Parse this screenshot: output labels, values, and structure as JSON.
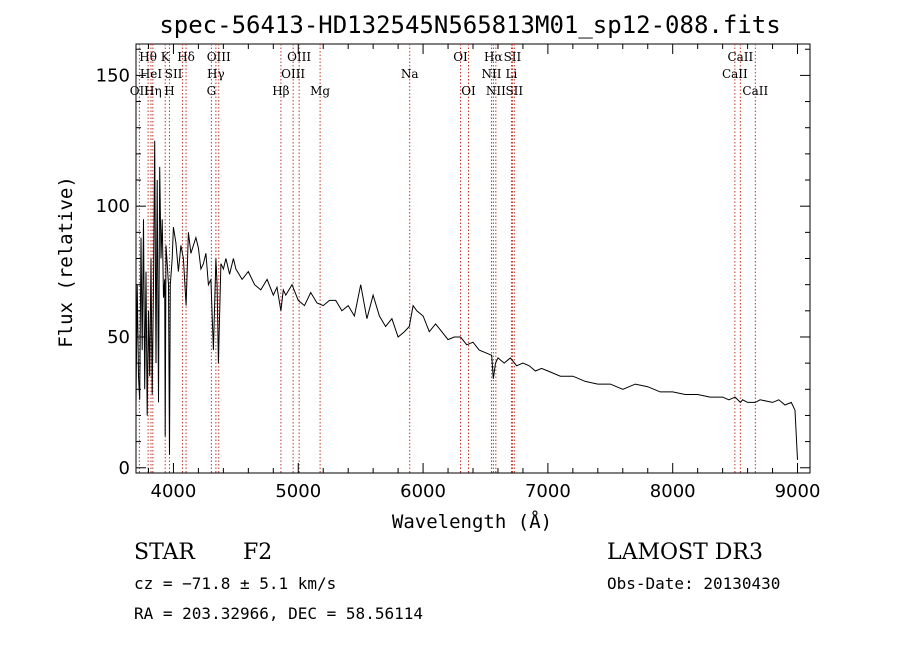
{
  "colors": {
    "line_marker": "#c0392b",
    "spectrum": "#000000"
  },
  "chart_data": {
    "type": "line",
    "title": "spec-56413-HD132545N565813M01_sp12-088.fits",
    "xlabel": "Wavelength (Å)",
    "ylabel": "Flux (relative)",
    "xlim": [
      3700,
      9100
    ],
    "ylim": [
      -2,
      162
    ],
    "xticks": [
      4000,
      5000,
      6000,
      7000,
      8000,
      9000
    ],
    "yticks": [
      0,
      50,
      100,
      150
    ],
    "spectrum": {
      "x": [
        3700,
        3710,
        3720,
        3730,
        3740,
        3750,
        3760,
        3770,
        3780,
        3790,
        3800,
        3810,
        3820,
        3830,
        3840,
        3850,
        3860,
        3870,
        3880,
        3890,
        3900,
        3910,
        3920,
        3930,
        3934,
        3940,
        3950,
        3960,
        3968,
        3975,
        3990,
        4000,
        4020,
        4040,
        4060,
        4080,
        4101,
        4120,
        4140,
        4160,
        4180,
        4200,
        4220,
        4240,
        4260,
        4280,
        4300,
        4320,
        4340,
        4350,
        4360,
        4380,
        4400,
        4420,
        4450,
        4480,
        4500,
        4550,
        4600,
        4650,
        4700,
        4750,
        4800,
        4830,
        4861,
        4880,
        4900,
        4950,
        5000,
        5050,
        5100,
        5150,
        5200,
        5250,
        5300,
        5350,
        5400,
        5450,
        5500,
        5550,
        5600,
        5650,
        5700,
        5750,
        5800,
        5850,
        5890,
        5920,
        5950,
        6000,
        6050,
        6100,
        6150,
        6200,
        6250,
        6300,
        6350,
        6400,
        6450,
        6500,
        6550,
        6563,
        6580,
        6600,
        6650,
        6700,
        6750,
        6800,
        6850,
        6900,
        6950,
        7000,
        7100,
        7200,
        7300,
        7400,
        7500,
        7600,
        7700,
        7800,
        7900,
        8000,
        8100,
        8200,
        8300,
        8400,
        8450,
        8500,
        8542,
        8560,
        8600,
        8662,
        8700,
        8800,
        8850,
        8900,
        8950,
        8980,
        9000
      ],
      "y": [
        24,
        70,
        35,
        26,
        88,
        45,
        95,
        30,
        75,
        20,
        60,
        35,
        80,
        28,
        70,
        125,
        40,
        110,
        25,
        115,
        80,
        95,
        65,
        72,
        12,
        85,
        78,
        70,
        5,
        70,
        80,
        92,
        86,
        75,
        85,
        80,
        62,
        90,
        82,
        85,
        88,
        84,
        76,
        78,
        82,
        70,
        72,
        45,
        80,
        70,
        40,
        78,
        76,
        80,
        74,
        80,
        76,
        72,
        75,
        70,
        68,
        72,
        66,
        69,
        60,
        68,
        66,
        70,
        64,
        62,
        67,
        63,
        62,
        64,
        64,
        60,
        62,
        58,
        70,
        57,
        66,
        58,
        54,
        57,
        50,
        52,
        54,
        62,
        60,
        58,
        52,
        55,
        52,
        49,
        50,
        50,
        47,
        48,
        45,
        44,
        43,
        34,
        40,
        42,
        40,
        42,
        39,
        40,
        39,
        37,
        38,
        37,
        35,
        35,
        33,
        32,
        32,
        30,
        32,
        31,
        29,
        29,
        28,
        28,
        27,
        27,
        26,
        27,
        25,
        26,
        25,
        25,
        26,
        25,
        26,
        24,
        25,
        22,
        3
      ]
    },
    "lines": [
      {
        "name": "Hθ",
        "label": "Hθ",
        "wave": 3797,
        "row": 0,
        "align": "middle"
      },
      {
        "name": "OII",
        "label": "OII",
        "wave": 3727,
        "row": 2,
        "align": "middle"
      },
      {
        "name": "HeI-3820",
        "label": "HeI",
        "wave": 3820,
        "row": 1,
        "align": "middle"
      },
      {
        "name": "Hη",
        "label": "Hη",
        "wave": 3835,
        "row": 2,
        "align": "middle"
      },
      {
        "name": "K",
        "label": "K",
        "wave": 3934,
        "row": 0,
        "align": "middle"
      },
      {
        "name": "H",
        "label": "H",
        "wave": 3968,
        "row": 2,
        "align": "middle"
      },
      {
        "name": "SII-4072",
        "label": "SII",
        "wave": 4072,
        "row": 1,
        "align": "end"
      },
      {
        "name": "Hδ",
        "label": "Hδ",
        "wave": 4101,
        "row": 0,
        "align": "middle"
      },
      {
        "name": "G",
        "label": "G",
        "wave": 4304,
        "row": 2,
        "align": "middle"
      },
      {
        "name": "Hγ",
        "label": "Hγ",
        "wave": 4340,
        "row": 1,
        "align": "middle"
      },
      {
        "name": "OIII-4363",
        "label": "OIII",
        "wave": 4363,
        "row": 0,
        "align": "middle"
      },
      {
        "name": "Hβ",
        "label": "Hβ",
        "wave": 4861,
        "row": 2,
        "align": "middle"
      },
      {
        "name": "OIII-4959",
        "label": "OIII",
        "wave": 4959,
        "row": 1,
        "align": "middle"
      },
      {
        "name": "OIII-5007",
        "label": "OIII",
        "wave": 5007,
        "row": 0,
        "align": "middle"
      },
      {
        "name": "Mg",
        "label": "Mg",
        "wave": 5175,
        "row": 2,
        "align": "middle"
      },
      {
        "name": "Na",
        "label": "Na",
        "wave": 5893,
        "row": 1,
        "align": "middle"
      },
      {
        "name": "OI-6300",
        "label": "OI",
        "wave": 6300,
        "row": 0,
        "align": "middle"
      },
      {
        "name": "OI-6364",
        "label": "OI",
        "wave": 6364,
        "row": 2,
        "align": "middle"
      },
      {
        "name": "NII-6548",
        "label": "NII",
        "wave": 6548,
        "row": 1,
        "align": "middle"
      },
      {
        "name": "Hα",
        "label": "Hα",
        "wave": 6563,
        "row": 0,
        "align": "middle"
      },
      {
        "name": "NII-6583",
        "label": "NII",
        "wave": 6583,
        "row": 2,
        "align": "middle"
      },
      {
        "name": "Li",
        "label": "Li",
        "wave": 6708,
        "row": 1,
        "align": "middle"
      },
      {
        "name": "SII-6716",
        "label": "SII",
        "wave": 6716,
        "row": 0,
        "align": "middle"
      },
      {
        "name": "SII-6731",
        "label": "SII",
        "wave": 6731,
        "row": 2,
        "align": "middle"
      },
      {
        "name": "CaII-8498",
        "label": "CaII",
        "wave": 8498,
        "row": 1,
        "align": "middle"
      },
      {
        "name": "CaII-8542",
        "label": "CaII",
        "wave": 8542,
        "row": 0,
        "align": "middle"
      },
      {
        "name": "CaII-8662",
        "label": "CaII",
        "wave": 8662,
        "row": 2,
        "align": "middle"
      }
    ]
  },
  "info": {
    "class": "STAR",
    "subclass": "F2",
    "survey": "LAMOST DR3",
    "redshift": "cz = −71.8 ± 5.1 km/s",
    "obs_date": "Obs-Date: 20130430",
    "coords": "RA = 203.32966, DEC =  58.56114"
  }
}
